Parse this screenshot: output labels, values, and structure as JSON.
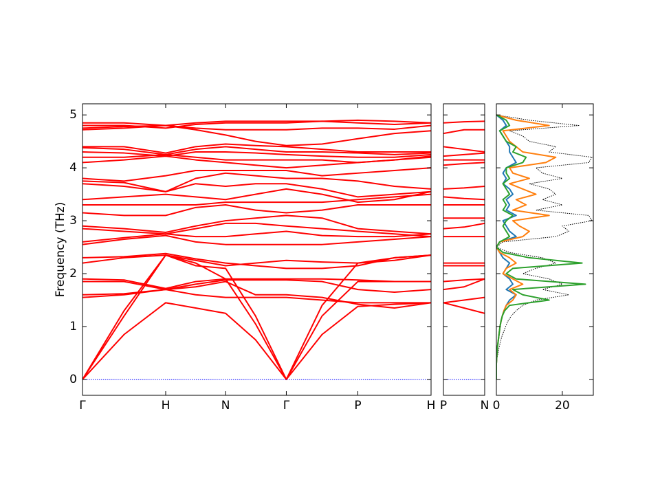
{
  "chart_data": [
    {
      "type": "line",
      "ylabel": "Frequency (THz)",
      "color": "#ff0000",
      "x": [
        0,
        0.5,
        1.0,
        1.36,
        1.72,
        2.08,
        2.45,
        2.88,
        3.31,
        3.75,
        4.19
      ],
      "xlim": [
        0,
        4.19
      ],
      "xticks": [
        {
          "value": 0,
          "label": "Γ"
        },
        {
          "value": 1.0,
          "label": "H"
        },
        {
          "value": 1.72,
          "label": "N"
        },
        {
          "value": 2.45,
          "label": "Γ"
        },
        {
          "value": 3.31,
          "label": "P"
        },
        {
          "value": 4.19,
          "label": "H"
        }
      ],
      "ylim": [
        -0.3,
        5.21
      ],
      "yticks": [
        0,
        1,
        2,
        3,
        4,
        5
      ],
      "series": [
        {
          "values": [
            0,
            0.85,
            1.45,
            1.35,
            1.25,
            0.75,
            0,
            0.85,
            1.38,
            1.42,
            1.45
          ]
        },
        {
          "values": [
            0,
            1.2,
            2.35,
            2.2,
            1.9,
            1.05,
            0,
            1.2,
            1.85,
            1.85,
            1.85
          ]
        },
        {
          "values": [
            0,
            1.3,
            2.35,
            2.15,
            2.1,
            1.2,
            0,
            1.4,
            2.2,
            2.3,
            2.35
          ]
        },
        {
          "values": [
            1.55,
            1.6,
            1.7,
            1.6,
            1.55,
            1.55,
            1.55,
            1.5,
            1.45,
            1.45,
            1.45
          ]
        },
        {
          "values": [
            1.6,
            1.62,
            1.7,
            1.75,
            1.85,
            1.6,
            1.6,
            1.55,
            1.42,
            1.35,
            1.45
          ]
        },
        {
          "values": [
            1.85,
            1.85,
            1.7,
            1.8,
            1.88,
            1.88,
            1.88,
            1.85,
            1.7,
            1.65,
            1.7
          ]
        },
        {
          "values": [
            1.9,
            1.88,
            1.72,
            1.85,
            1.9,
            1.9,
            1.9,
            1.9,
            1.88,
            1.85,
            1.85
          ]
        },
        {
          "values": [
            2.2,
            2.3,
            2.35,
            2.25,
            2.15,
            2.2,
            2.25,
            2.22,
            2.2,
            2.25,
            2.35
          ]
        },
        {
          "values": [
            2.3,
            2.32,
            2.38,
            2.28,
            2.2,
            2.15,
            2.1,
            2.1,
            2.15,
            2.3,
            2.35
          ]
        },
        {
          "values": [
            2.55,
            2.65,
            2.72,
            2.6,
            2.55,
            2.55,
            2.55,
            2.55,
            2.6,
            2.65,
            2.7
          ]
        },
        {
          "values": [
            2.6,
            2.68,
            2.75,
            2.7,
            2.7,
            2.75,
            2.8,
            2.72,
            2.7,
            2.7,
            2.75
          ]
        },
        {
          "values": [
            2.85,
            2.8,
            2.75,
            2.85,
            2.95,
            2.95,
            2.9,
            2.85,
            2.8,
            2.75,
            2.7
          ]
        },
        {
          "values": [
            2.9,
            2.85,
            2.78,
            2.9,
            3.0,
            3.05,
            3.1,
            3.05,
            2.85,
            2.8,
            2.75
          ]
        },
        {
          "values": [
            3.15,
            3.1,
            3.1,
            3.25,
            3.3,
            3.2,
            3.15,
            3.2,
            3.3,
            3.3,
            3.3
          ]
        },
        {
          "values": [
            3.3,
            3.3,
            3.3,
            3.3,
            3.35,
            3.35,
            3.35,
            3.35,
            3.4,
            3.45,
            3.5
          ]
        },
        {
          "values": [
            3.4,
            3.45,
            3.5,
            3.45,
            3.4,
            3.5,
            3.6,
            3.5,
            3.35,
            3.4,
            3.55
          ]
        },
        {
          "values": [
            3.7,
            3.65,
            3.55,
            3.7,
            3.65,
            3.7,
            3.7,
            3.6,
            3.45,
            3.5,
            3.55
          ]
        },
        {
          "values": [
            3.75,
            3.72,
            3.55,
            3.8,
            3.9,
            3.85,
            3.8,
            3.8,
            3.75,
            3.65,
            3.6
          ]
        },
        {
          "values": [
            3.8,
            3.75,
            3.85,
            3.95,
            3.95,
            3.95,
            3.95,
            3.85,
            3.9,
            3.95,
            4.0
          ]
        },
        {
          "values": [
            4.1,
            4.15,
            4.22,
            4.15,
            4.1,
            4.05,
            4.0,
            4.05,
            4.1,
            4.15,
            4.2
          ]
        },
        {
          "values": [
            4.2,
            4.2,
            4.25,
            4.2,
            4.15,
            4.15,
            4.15,
            4.15,
            4.1,
            4.15,
            4.22
          ]
        },
        {
          "values": [
            4.3,
            4.28,
            4.22,
            4.3,
            4.3,
            4.28,
            4.25,
            4.22,
            4.2,
            4.2,
            4.25
          ]
        },
        {
          "values": [
            4.38,
            4.35,
            4.25,
            4.35,
            4.4,
            4.35,
            4.3,
            4.3,
            4.28,
            4.25,
            4.28
          ]
        },
        {
          "values": [
            4.4,
            4.4,
            4.28,
            4.4,
            4.45,
            4.42,
            4.4,
            4.35,
            4.3,
            4.3,
            4.3
          ]
        },
        {
          "values": [
            4.72,
            4.75,
            4.8,
            4.72,
            4.62,
            4.5,
            4.42,
            4.45,
            4.55,
            4.65,
            4.7
          ]
        },
        {
          "values": [
            4.75,
            4.78,
            4.8,
            4.75,
            4.72,
            4.72,
            4.72,
            4.75,
            4.75,
            4.73,
            4.8
          ]
        },
        {
          "values": [
            4.8,
            4.8,
            4.75,
            4.82,
            4.85,
            4.85,
            4.85,
            4.88,
            4.9,
            4.88,
            4.85
          ]
        },
        {
          "values": [
            4.85,
            4.85,
            4.8,
            4.85,
            4.88,
            4.88,
            4.88,
            4.88,
            4.85,
            4.82,
            4.85
          ]
        },
        {
          "color": "#0000ff",
          "style": "dotted",
          "values": [
            0,
            0,
            0,
            0,
            0,
            0,
            0,
            0,
            0,
            0,
            0
          ]
        }
      ]
    },
    {
      "type": "line",
      "color": "#ff0000",
      "x": [
        0,
        0.25,
        0.5
      ],
      "xlim": [
        0,
        0.5
      ],
      "xticks": [
        {
          "value": 0,
          "label": "P"
        },
        {
          "value": 0.5,
          "label": "N"
        }
      ],
      "ylim": [
        -0.3,
        5.21
      ],
      "yticks": [
        0,
        1,
        2,
        3,
        4,
        5
      ],
      "series": [
        {
          "values": [
            1.45,
            1.35,
            1.25
          ]
        },
        {
          "values": [
            1.45,
            1.5,
            1.55
          ]
        },
        {
          "values": [
            1.7,
            1.75,
            1.9
          ]
        },
        {
          "values": [
            1.85,
            1.88,
            1.9
          ]
        },
        {
          "values": [
            2.15,
            2.15,
            2.15
          ]
        },
        {
          "values": [
            2.2,
            2.2,
            2.2
          ]
        },
        {
          "values": [
            2.7,
            2.7,
            2.7
          ]
        },
        {
          "values": [
            2.85,
            2.88,
            2.95
          ]
        },
        {
          "values": [
            3.05,
            3.05,
            3.05
          ]
        },
        {
          "values": [
            3.3,
            3.3,
            3.3
          ]
        },
        {
          "values": [
            3.45,
            3.42,
            3.4
          ]
        },
        {
          "values": [
            3.6,
            3.62,
            3.65
          ]
        },
        {
          "values": [
            4.05,
            4.08,
            4.1
          ]
        },
        {
          "values": [
            4.15,
            4.15,
            4.15
          ]
        },
        {
          "values": [
            4.22,
            4.25,
            4.28
          ]
        },
        {
          "values": [
            4.4,
            4.35,
            4.3
          ]
        },
        {
          "values": [
            4.65,
            4.72,
            4.72
          ]
        },
        {
          "values": [
            4.85,
            4.87,
            4.88
          ]
        },
        {
          "color": "#0000ff",
          "style": "dotted",
          "values": [
            0,
            0,
            0
          ]
        }
      ]
    },
    {
      "type": "line",
      "orientation": "horizontal",
      "y": [
        0.0,
        0.1,
        0.2,
        0.3,
        0.4,
        0.5,
        0.6,
        0.7,
        0.8,
        0.9,
        1.0,
        1.1,
        1.2,
        1.3,
        1.4,
        1.5,
        1.6,
        1.7,
        1.8,
        1.9,
        2.0,
        2.1,
        2.2,
        2.3,
        2.4,
        2.5,
        2.6,
        2.7,
        2.8,
        2.9,
        3.0,
        3.1,
        3.2,
        3.3,
        3.4,
        3.5,
        3.6,
        3.7,
        3.8,
        3.9,
        4.0,
        4.1,
        4.2,
        4.3,
        4.4,
        4.5,
        4.6,
        4.7,
        4.8,
        4.9,
        5.0
      ],
      "xlim": [
        0,
        29.4
      ],
      "xticks": [
        0,
        20
      ],
      "ylim": [
        -0.3,
        5.21
      ],
      "yticks": [
        0,
        1,
        2,
        3,
        4,
        5
      ],
      "series": [
        {
          "color": "#000000",
          "style": "dotted",
          "values": [
            0,
            0,
            0,
            0,
            0.2,
            0.5,
            0.8,
            1.2,
            1.6,
            2.2,
            2.8,
            3.5,
            4.5,
            6,
            8,
            12,
            22,
            14,
            20,
            16,
            8,
            12,
            18,
            14,
            4,
            0,
            2,
            18,
            22,
            20,
            29,
            28,
            12,
            20,
            14,
            18,
            16,
            10,
            20,
            14,
            12,
            28,
            29,
            16,
            18,
            10,
            8,
            4,
            25,
            10,
            0
          ]
        },
        {
          "color": "#1f77b4",
          "values": [
            0,
            0,
            0,
            0,
            0.1,
            0.2,
            0.3,
            0.5,
            0.7,
            0.9,
            1.1,
            1.4,
            1.8,
            2.3,
            3,
            4,
            6,
            3,
            5,
            4,
            2,
            3,
            4,
            2,
            1,
            0,
            1,
            6,
            4,
            3,
            2,
            6,
            3,
            4,
            3,
            5,
            4,
            2,
            3,
            2,
            3,
            6,
            5,
            4,
            4,
            3,
            2,
            1,
            3,
            2,
            0
          ]
        },
        {
          "color": "#ff7f0e",
          "values": [
            0,
            0,
            0,
            0,
            0.1,
            0.2,
            0.3,
            0.5,
            0.7,
            0.9,
            1.1,
            1.4,
            1.8,
            2.3,
            3,
            5,
            6,
            4,
            8,
            5,
            2,
            3,
            6,
            4,
            1,
            0,
            1,
            8,
            10,
            7,
            5,
            16,
            5,
            9,
            6,
            12,
            8,
            4,
            10,
            5,
            4,
            15,
            18,
            8,
            6,
            4,
            3,
            2,
            16,
            6,
            0
          ]
        },
        {
          "color": "#2ca02c",
          "values": [
            0,
            0,
            0,
            0,
            0.1,
            0.2,
            0.3,
            0.5,
            0.7,
            0.9,
            1.1,
            1.4,
            1.8,
            2.5,
            4,
            16,
            8,
            5,
            27,
            6,
            3,
            5,
            26,
            10,
            2,
            0,
            1,
            4,
            3,
            2,
            3,
            5,
            2,
            3,
            2,
            4,
            3,
            2,
            4,
            3,
            3,
            8,
            9,
            5,
            6,
            3,
            2,
            1,
            4,
            3,
            0
          ]
        }
      ]
    }
  ]
}
